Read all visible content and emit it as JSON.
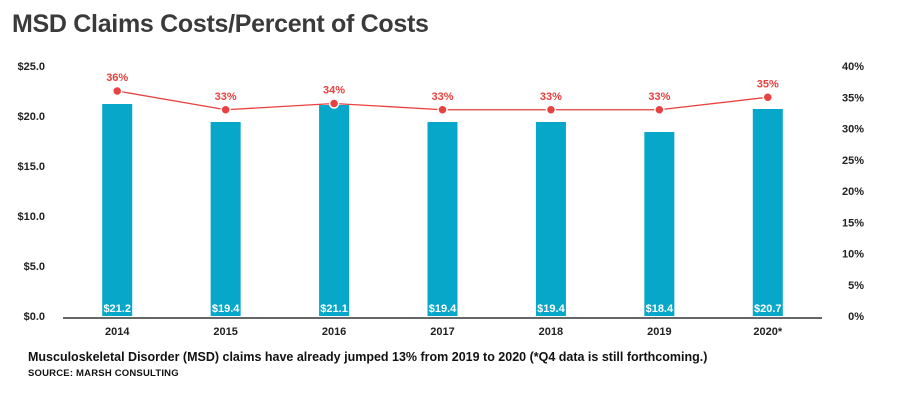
{
  "title": "MSD Claims Costs/Percent of Costs",
  "caption": "Musculoskeletal Disorder (MSD) claims have already jumped 13% from 2019 to 2020 (*Q4 data is still forthcoming.)",
  "source": "SOURCE: MARSH CONSULTING",
  "colors": {
    "bar": "#06a7c9",
    "line": "#e8413f",
    "grid": "#d9d9d9",
    "axis": "#333333"
  },
  "chart_data": {
    "type": "bar",
    "categories": [
      "2014",
      "2015",
      "2016",
      "2017",
      "2018",
      "2019",
      "2020*"
    ],
    "series": [
      {
        "kind": "bar",
        "axis": "left",
        "values": [
          21.2,
          19.4,
          21.1,
          19.4,
          19.4,
          18.4,
          20.7
        ],
        "labels": [
          "$21.2",
          "$19.4",
          "$21.1",
          "$19.4",
          "$19.4",
          "$18.4",
          "$20.7"
        ]
      },
      {
        "kind": "line",
        "axis": "right",
        "values": [
          36,
          33,
          34,
          33,
          33,
          33,
          35
        ],
        "labels": [
          "36%",
          "33%",
          "34%",
          "33%",
          "33%",
          "33%",
          "35%"
        ]
      }
    ],
    "y_left": {
      "lim": [
        0,
        25
      ],
      "ticks": [
        0,
        5,
        10,
        15,
        20,
        25
      ],
      "tick_labels": [
        "$0.0",
        "$5.0",
        "$10.0",
        "$15.0",
        "$20.0",
        "$25.0"
      ]
    },
    "y_right": {
      "lim": [
        0,
        40
      ],
      "ticks": [
        0,
        5,
        10,
        15,
        20,
        25,
        30,
        35,
        40
      ],
      "tick_labels": [
        "0%",
        "5%",
        "10%",
        "15%",
        "20%",
        "25%",
        "30%",
        "35%",
        "40%"
      ]
    },
    "grid": false
  }
}
